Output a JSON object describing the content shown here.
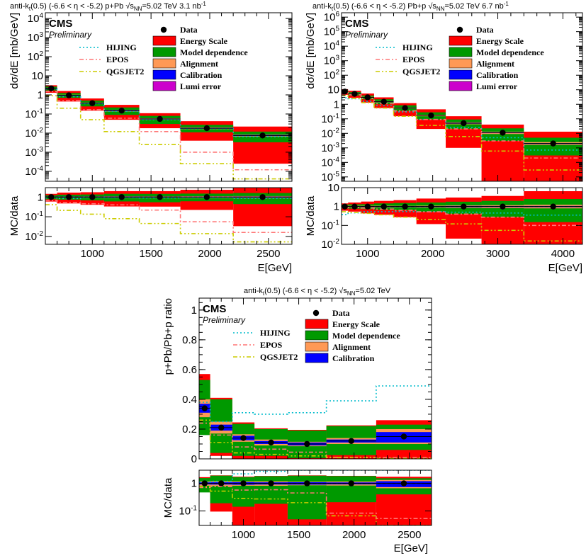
{
  "chart_data": [
    {
      "id": "ppb",
      "type": "line",
      "header": "anti-k_{t}(0.5)  (-6.6 < η < -5.2)  p+Pb  √s_{NN}=5.02 TeV  3.1 nb^{-1}",
      "experiment": "CMS",
      "status": "Preliminary",
      "ylabel": "dσ/dE [mb/GeV]",
      "ratio_ylabel": "MC/data",
      "xlabel": "E[GeV]",
      "xlim": [
        600,
        2700
      ],
      "ylim": [
        3e-05,
        20000
      ],
      "ratio_ylim": [
        0.004,
        3
      ],
      "log_y": true,
      "xticks": [
        1000,
        1500,
        2000,
        2500
      ],
      "yticks": [
        {
          "v": 0.0001,
          "t": "10",
          "e": "-4"
        },
        {
          "v": 0.001,
          "t": "10",
          "e": "-3"
        },
        {
          "v": 0.01,
          "t": "10",
          "e": "-2"
        },
        {
          "v": 0.1,
          "t": "10",
          "e": "-1"
        },
        {
          "v": 1,
          "t": "1",
          "e": ""
        },
        {
          "v": 10,
          "t": "10",
          "e": ""
        },
        {
          "v": 100,
          "t": "10",
          "e": "2"
        },
        {
          "v": 1000,
          "t": "10",
          "e": "3"
        },
        {
          "v": 10000,
          "t": "10",
          "e": "4"
        }
      ],
      "ratio_yticks": [
        {
          "v": 0.01,
          "t": "10",
          "e": "-2"
        },
        {
          "v": 0.1,
          "t": "10",
          "e": "-1"
        },
        {
          "v": 1,
          "t": "1",
          "e": ""
        }
      ],
      "bin_edges": [
        600,
        700,
        900,
        1100,
        1400,
        1750,
        2200,
        2700
      ],
      "data": [
        2.2,
        0.95,
        0.37,
        0.15,
        0.055,
        0.018,
        0.0075
      ],
      "uncertainties": [
        {
          "name": "Energy Scale",
          "color": "#ff0000",
          "lo": [
            1.3,
            0.45,
            0.15,
            0.05,
            0.018,
            0.004,
            0.00025
          ],
          "hi": [
            3.2,
            1.6,
            0.65,
            0.3,
            0.11,
            0.042,
            0.022
          ]
        },
        {
          "name": "Model dependence",
          "color": "#009900",
          "lo": [
            1.7,
            0.7,
            0.25,
            0.09,
            0.03,
            0.011,
            0.0033
          ],
          "hi": [
            2.7,
            1.25,
            0.5,
            0.22,
            0.08,
            0.027,
            0.012
          ]
        },
        {
          "name": "Alignment",
          "color": "#ff9955",
          "lo": [
            2.05,
            0.88,
            0.34,
            0.135,
            0.05,
            0.016,
            0.0066
          ],
          "hi": [
            2.35,
            1.02,
            0.4,
            0.165,
            0.06,
            0.02,
            0.0084
          ]
        },
        {
          "name": "Calibration",
          "color": "#0000ff",
          "lo": [
            2.1,
            0.9,
            0.35,
            0.14,
            0.052,
            0.017,
            0.007
          ],
          "hi": [
            2.3,
            1.0,
            0.39,
            0.16,
            0.058,
            0.019,
            0.008
          ]
        },
        {
          "name": "Lumi error",
          "color": "#cc00cc",
          "lo": [],
          "hi": []
        }
      ],
      "models": [
        {
          "name": "HIJING",
          "color": "#00bbcc",
          "dash": "2,3",
          "values": [
            2.0,
            0.8,
            0.35,
            0.14,
            0.05,
            0.017,
            0.0065
          ]
        },
        {
          "name": "EPOS",
          "color": "#ff7777",
          "dash": "6,3,2,3",
          "values": [
            1.5,
            0.5,
            0.17,
            0.06,
            0.012,
            0.001,
            0.00012
          ]
        },
        {
          "name": "QGSJET2",
          "color": "#cccc00",
          "dash": "6,3,2,3,2,3",
          "values": [
            0.9,
            0.2,
            0.05,
            0.012,
            0.0025,
            0.00025,
            4e-05
          ]
        }
      ]
    },
    {
      "id": "pbp",
      "type": "line",
      "header": "anti-k_{t}(0.5)  (-6.6 < η < -5.2)  Pb+p  √s_{NN}=5.02 TeV  6.7 nb^{-1}",
      "experiment": "CMS",
      "status": "Preliminary",
      "ylabel": "dσ/dE [mb/GeV]",
      "ratio_ylabel": "MC/data",
      "xlabel": "E[GeV]",
      "xlim": [
        600,
        4300
      ],
      "ylim": [
        5e-06,
        2000000
      ],
      "ratio_ylim": [
        0.01,
        10
      ],
      "log_y": true,
      "xticks": [
        1000,
        2000,
        3000,
        4000
      ],
      "yticks": [
        {
          "v": 1e-05,
          "t": "10",
          "e": "-5"
        },
        {
          "v": 0.0001,
          "t": "10",
          "e": "-4"
        },
        {
          "v": 0.001,
          "t": "10",
          "e": "-3"
        },
        {
          "v": 0.01,
          "t": "10",
          "e": "-2"
        },
        {
          "v": 0.1,
          "t": "10",
          "e": "-1"
        },
        {
          "v": 1,
          "t": "1",
          "e": ""
        },
        {
          "v": 10,
          "t": "10",
          "e": ""
        },
        {
          "v": 100,
          "t": "10",
          "e": "2"
        },
        {
          "v": 1000,
          "t": "10",
          "e": "3"
        },
        {
          "v": 10000,
          "t": "10",
          "e": "4"
        },
        {
          "v": 100000,
          "t": "10",
          "e": "5"
        },
        {
          "v": 1000000,
          "t": "10",
          "e": "6"
        }
      ],
      "ratio_yticks": [
        {
          "v": 0.01,
          "t": "10",
          "e": "-2"
        },
        {
          "v": 0.1,
          "t": "10",
          "e": "-1"
        },
        {
          "v": 1,
          "t": "1",
          "e": ""
        },
        {
          "v": 10,
          "t": "10",
          "e": ""
        }
      ],
      "bin_edges": [
        600,
        700,
        900,
        1100,
        1400,
        1750,
        2200,
        2750,
        3400,
        4300
      ],
      "data": [
        7.5,
        5.2,
        3.0,
        1.5,
        0.55,
        0.17,
        0.05,
        0.011,
        0.002
      ],
      "uncertainties": [
        {
          "name": "Energy Scale",
          "color": "#ff0000",
          "lo": [
            4.5,
            2.8,
            1.3,
            0.55,
            0.15,
            0.02,
            0.001,
            5e-06,
            5e-06
          ],
          "hi": [
            11,
            8.5,
            5.5,
            3.0,
            1.2,
            0.45,
            0.15,
            0.04,
            0.013
          ]
        },
        {
          "name": "Model dependence",
          "color": "#009900",
          "lo": [
            6,
            4,
            2.2,
            1.0,
            0.35,
            0.09,
            0.02,
            0.003,
            0.0003
          ],
          "hi": [
            9.5,
            6.8,
            4.0,
            2.2,
            0.85,
            0.28,
            0.09,
            0.022,
            0.005
          ]
        },
        {
          "name": "Alignment",
          "color": "#ff9955",
          "lo": [
            7,
            4.8,
            2.75,
            1.35,
            0.5,
            0.15,
            0.042,
            0.009,
            0.0016
          ],
          "hi": [
            8.1,
            5.7,
            3.3,
            1.65,
            0.6,
            0.19,
            0.058,
            0.013,
            0.0025
          ]
        },
        {
          "name": "Calibration",
          "color": "#0000ff",
          "lo": [
            7.2,
            5.0,
            2.85,
            1.42,
            0.52,
            0.16,
            0.046,
            0.0102,
            0.00185
          ],
          "hi": [
            7.8,
            5.45,
            3.15,
            1.58,
            0.58,
            0.18,
            0.054,
            0.0118,
            0.00215
          ]
        },
        {
          "name": "Lumi error",
          "color": "#cc00cc",
          "lo": [],
          "hi": []
        }
      ],
      "models": [
        {
          "name": "HIJING",
          "color": "#00bbcc",
          "dash": "2,3",
          "values": [
            2.8,
            2.4,
            1.6,
            0.8,
            0.3,
            0.09,
            0.025,
            0.005,
            0.0007
          ]
        },
        {
          "name": "EPOS",
          "color": "#ff7777",
          "dash": "6,3,2,3",
          "values": [
            6.5,
            4.5,
            2.5,
            1.1,
            0.35,
            0.09,
            0.02,
            0.003,
            0.0002
          ]
        },
        {
          "name": "QGSJET2",
          "color": "#cccc00",
          "dash": "6,3,2,3,2,3",
          "values": [
            4.0,
            2.5,
            1.3,
            0.55,
            0.15,
            0.035,
            0.006,
            0.0006,
            3e-05
          ]
        }
      ]
    },
    {
      "id": "ratio",
      "type": "line",
      "header": "anti-k_{t}(0.5)  (-6.6 < η < -5.2)  √s_{NN}=5.02 TeV",
      "experiment": "CMS",
      "status": "Preliminary",
      "ylabel": "p+Pb/Pb+p ratio",
      "ratio_ylabel": "MC/data",
      "xlabel": "E[GeV]",
      "xlim": [
        600,
        2700
      ],
      "ylim": [
        0,
        1.08
      ],
      "ratio_ylim": [
        0.03,
        3
      ],
      "log_y": false,
      "xticks": [
        1000,
        1500,
        2000,
        2500
      ],
      "yticks": [
        {
          "v": 0,
          "t": "0",
          "e": ""
        },
        {
          "v": 0.2,
          "t": "0.2",
          "e": ""
        },
        {
          "v": 0.4,
          "t": "0.4",
          "e": ""
        },
        {
          "v": 0.6,
          "t": "0.6",
          "e": ""
        },
        {
          "v": 0.8,
          "t": "0.8",
          "e": ""
        },
        {
          "v": 1,
          "t": "1",
          "e": ""
        }
      ],
      "ratio_yticks": [
        {
          "v": 0.1,
          "t": "10",
          "e": "-1"
        },
        {
          "v": 1,
          "t": "1",
          "e": ""
        }
      ],
      "bin_edges": [
        600,
        700,
        900,
        1100,
        1400,
        1750,
        2200,
        2700
      ],
      "data": [
        0.34,
        0.21,
        0.14,
        0.11,
        0.1,
        0.12,
        0.15
      ],
      "uncertainties": [
        {
          "name": "Energy Scale",
          "color": "#ff0000",
          "lo": [
            0.2,
            0.02,
            0.0,
            0.0,
            0.0,
            0.0,
            0.0
          ],
          "hi": [
            0.57,
            0.41,
            0.245,
            0.205,
            0.195,
            0.225,
            0.26
          ]
        },
        {
          "name": "Model dependence",
          "color": "#009900",
          "lo": [
            0.16,
            0.04,
            0.02,
            0.02,
            0.005,
            0.025,
            0.06
          ],
          "hi": [
            0.53,
            0.4,
            0.235,
            0.2,
            0.19,
            0.22,
            0.23
          ]
        },
        {
          "name": "Alignment",
          "color": "#ff9955",
          "lo": [
            0.28,
            0.17,
            0.115,
            0.09,
            0.085,
            0.1,
            0.1
          ],
          "hi": [
            0.4,
            0.25,
            0.165,
            0.13,
            0.115,
            0.14,
            0.2
          ]
        },
        {
          "name": "Calibration",
          "color": "#0000ff",
          "lo": [
            0.31,
            0.19,
            0.125,
            0.1,
            0.09,
            0.11,
            0.11
          ],
          "hi": [
            0.37,
            0.23,
            0.155,
            0.12,
            0.11,
            0.13,
            0.18
          ]
        }
      ],
      "models": [
        {
          "name": "HIJING",
          "color": "#00bbcc",
          "dash": "2,3",
          "values": [
            0.38,
            0.25,
            0.31,
            0.3,
            0.31,
            0.39,
            0.49
          ]
        },
        {
          "name": "EPOS",
          "color": "#ff7777",
          "dash": "6,3,2,3",
          "values": [
            0.24,
            0.16,
            0.08,
            0.065,
            0.045,
            0.01,
            0.008
          ]
        },
        {
          "name": "QGSJET2",
          "color": "#cccc00",
          "dash": "6,3,2,3,2,3",
          "values": [
            0.26,
            0.11,
            0.04,
            0.03,
            0.02,
            0.008,
            0.003
          ]
        }
      ]
    }
  ]
}
